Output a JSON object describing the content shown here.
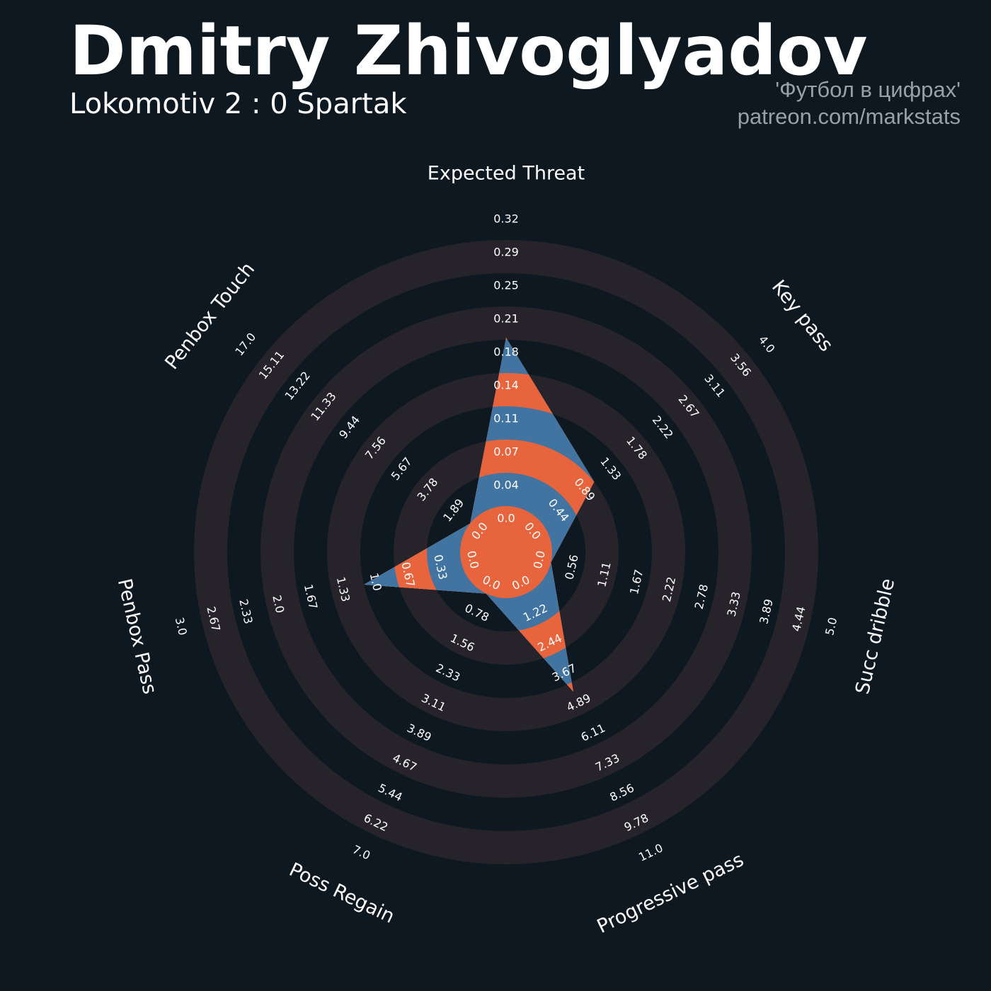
{
  "header": {
    "title": "Dmitry Zhivoglyadov",
    "subtitle": "Lokomotiv 2 : 0 Spartak",
    "credit_line1": "'Футбол в цифрах'",
    "credit_line2": "patreon.com/markstats"
  },
  "colors": {
    "background": "#0e1820",
    "ring": "#27232a",
    "fill_blue": "#4174a0",
    "fill_orange": "#e8643d",
    "text": "#ffffff",
    "credit": "#9aa0a4"
  },
  "chart_data": {
    "type": "radar",
    "title": "Dmitry Zhivoglyadov",
    "categories": [
      "Expected Threat",
      "Key pass",
      "Succ dribble",
      "Progressive pass",
      "Poss Regain",
      "Penbox Pass",
      "Penbox Touch"
    ],
    "ranges": [
      [
        0.0,
        0.32
      ],
      [
        0.0,
        4.0
      ],
      [
        0.0,
        5.0
      ],
      [
        0.0,
        11.0
      ],
      [
        0.0,
        7.0
      ],
      [
        0.0,
        3.0
      ],
      [
        0.0,
        17.0
      ]
    ],
    "values": [
      0.18,
      0.89,
      0.0,
      4.0,
      0.0,
      1.0,
      0.0
    ],
    "tick_labels": [
      [
        "0.0",
        "0.04",
        "0.07",
        "0.11",
        "0.14",
        "0.18",
        "0.21",
        "0.25",
        "0.29",
        "0.32"
      ],
      [
        "0.0",
        "0.44",
        "0.89",
        "1.33",
        "1.78",
        "2.22",
        "2.67",
        "3.11",
        "3.56",
        "4.0"
      ],
      [
        "0.0",
        "0.56",
        "1.11",
        "1.67",
        "2.22",
        "2.78",
        "3.33",
        "3.89",
        "4.44",
        "5.0"
      ],
      [
        "0.0",
        "1.22",
        "2.44",
        "3.67",
        "4.89",
        "6.11",
        "7.33",
        "8.56",
        "9.78",
        "11.0"
      ],
      [
        "0.0",
        "0.78",
        "1.56",
        "2.33",
        "3.11",
        "3.89",
        "4.67",
        "5.44",
        "6.22",
        "7.0"
      ],
      [
        "0.0",
        "0.33",
        "0.67",
        "1.0",
        "1.33",
        "1.67",
        "2.0",
        "2.33",
        "2.67",
        "3.0"
      ],
      [
        "0.0",
        "1.89",
        "3.78",
        "5.67",
        "7.56",
        "9.44",
        "11.33",
        "13.22",
        "15.11",
        "17.0"
      ]
    ]
  }
}
